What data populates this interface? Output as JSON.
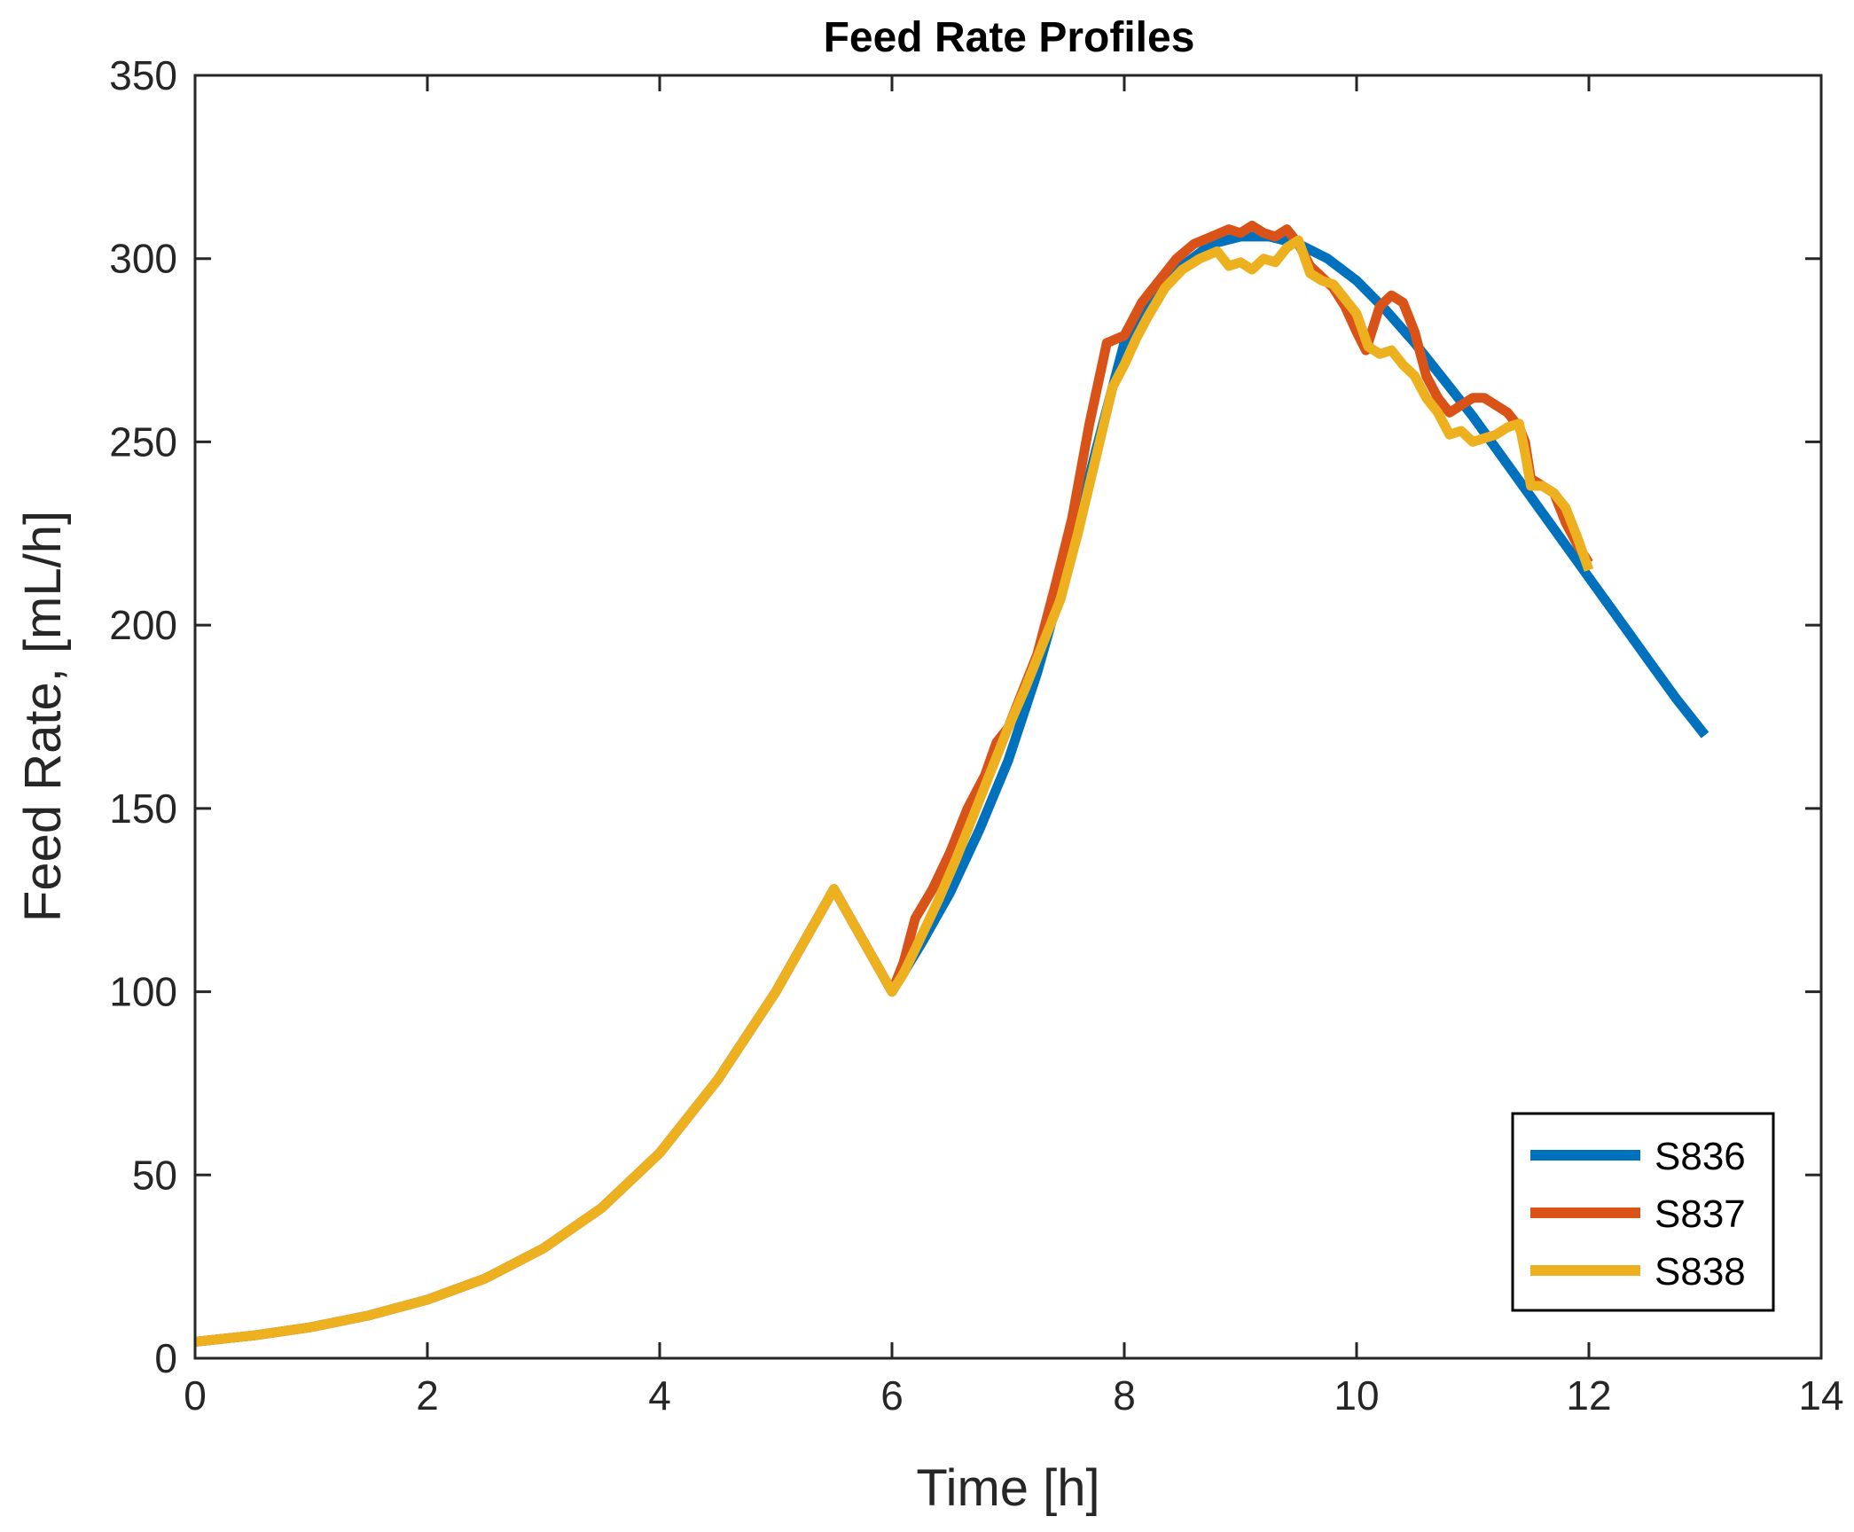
{
  "chart_data": {
    "type": "line",
    "title": "Feed Rate Profiles",
    "xlabel": "Time [h]",
    "ylabel": "Feed Rate, [mL/h]",
    "xlim": [
      0,
      14
    ],
    "ylim": [
      0,
      350
    ],
    "xticks": [
      0,
      2,
      4,
      6,
      8,
      10,
      12,
      14
    ],
    "yticks": [
      0,
      50,
      100,
      150,
      200,
      250,
      300,
      350
    ],
    "grid": false,
    "legend_position": "bottom-right",
    "series": [
      {
        "name": "S836",
        "color": "#0072BD",
        "x": [
          0,
          0.5,
          1,
          1.5,
          2,
          2.5,
          3,
          3.5,
          4,
          4.5,
          5,
          5.5,
          6,
          6.25,
          6.5,
          6.75,
          7,
          7.25,
          7.5,
          7.75,
          8,
          8.25,
          8.5,
          8.75,
          9,
          9.25,
          9.5,
          9.75,
          10,
          10.25,
          10.5,
          10.75,
          11,
          11.25,
          11.5,
          11.75,
          12,
          12.25,
          12.5,
          12.75,
          13
        ],
        "y": [
          4.5,
          6.2,
          8.5,
          11.7,
          16,
          21.8,
          30,
          41,
          56,
          76,
          100,
          128,
          100,
          113,
          127,
          144,
          163,
          187,
          215,
          247,
          277,
          289,
          298,
          304,
          306,
          306,
          304,
          300,
          294,
          286,
          277,
          267,
          257,
          246,
          235,
          224,
          213,
          202,
          191,
          180,
          170
        ]
      },
      {
        "name": "S837",
        "color": "#D95319",
        "x": [
          0,
          0.5,
          1,
          1.5,
          2,
          2.5,
          3,
          3.5,
          4,
          4.5,
          5,
          5.5,
          6,
          6.1,
          6.2,
          6.35,
          6.5,
          6.65,
          6.8,
          6.9,
          7.0,
          7.1,
          7.25,
          7.4,
          7.55,
          7.7,
          7.85,
          8.0,
          8.15,
          8.3,
          8.45,
          8.6,
          8.75,
          8.9,
          9.0,
          9.1,
          9.2,
          9.3,
          9.4,
          9.5,
          9.6,
          9.7,
          9.8,
          9.9,
          10.0,
          10.08,
          10.12,
          10.2,
          10.3,
          10.4,
          10.5,
          10.6,
          10.7,
          10.8,
          10.9,
          11.0,
          11.1,
          11.2,
          11.3,
          11.4,
          11.45,
          11.5,
          11.6,
          11.7,
          11.8,
          11.9,
          12.0
        ],
        "y": [
          4.5,
          6.2,
          8.5,
          11.7,
          16,
          21.8,
          30,
          41,
          56,
          76,
          100,
          128,
          100,
          108,
          120,
          128,
          138,
          150,
          159,
          168,
          172,
          180,
          192,
          210,
          229,
          255,
          277,
          279,
          288,
          294,
          300,
          304,
          306,
          308,
          307,
          309,
          307,
          306,
          308,
          304,
          298,
          295,
          292,
          287,
          280,
          275,
          279,
          287,
          290,
          288,
          280,
          268,
          262,
          258,
          260,
          262,
          262,
          260,
          258,
          254,
          250,
          240,
          238,
          236,
          228,
          222,
          217
        ]
      },
      {
        "name": "S838",
        "color": "#EDB120",
        "x": [
          0,
          0.5,
          1,
          1.5,
          2,
          2.5,
          3,
          3.5,
          4,
          4.5,
          5,
          5.5,
          6,
          6.1,
          6.25,
          6.4,
          6.55,
          6.7,
          6.85,
          7.0,
          7.15,
          7.3,
          7.45,
          7.6,
          7.75,
          7.9,
          8.0,
          8.1,
          8.2,
          8.35,
          8.5,
          8.65,
          8.8,
          8.9,
          9.0,
          9.1,
          9.2,
          9.3,
          9.4,
          9.5,
          9.6,
          9.7,
          9.8,
          9.9,
          10.0,
          10.1,
          10.2,
          10.3,
          10.4,
          10.5,
          10.6,
          10.7,
          10.8,
          10.9,
          11.0,
          11.1,
          11.2,
          11.3,
          11.4,
          11.45,
          11.5,
          11.6,
          11.7,
          11.8,
          11.9,
          12.0
        ],
        "y": [
          4.5,
          6.2,
          8.5,
          11.7,
          16,
          21.8,
          30,
          41,
          56,
          76,
          100,
          128,
          100,
          105,
          115,
          125,
          136,
          148,
          160,
          172,
          183,
          195,
          207,
          225,
          245,
          265,
          271,
          278,
          284,
          292,
          297,
          300,
          302,
          298,
          299,
          297,
          300,
          299,
          303,
          305,
          296,
          294,
          293,
          289,
          285,
          276,
          274,
          275,
          271,
          268,
          262,
          258,
          252,
          253,
          250,
          251,
          252,
          254,
          255,
          247,
          238,
          238,
          236,
          232,
          224,
          215
        ]
      }
    ]
  }
}
